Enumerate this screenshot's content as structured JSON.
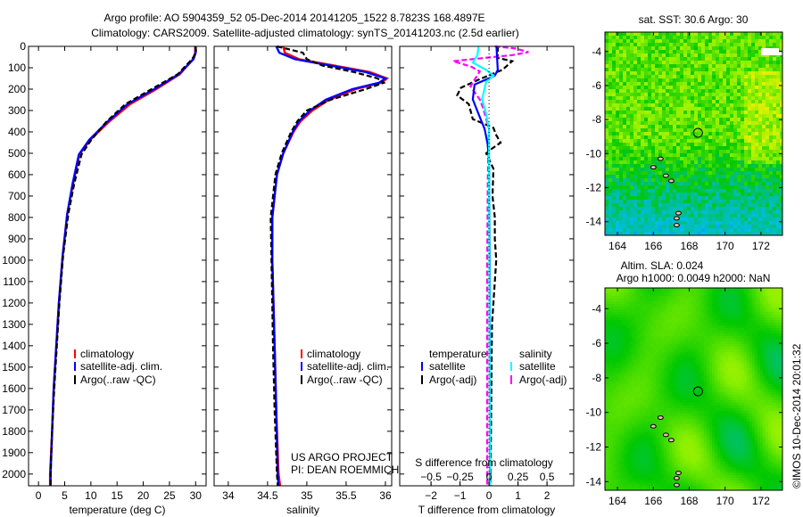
{
  "title": {
    "line1": "Argo profile: AO 5904359_52 05-Dec-2014 20141205_1522 8.7823S 168.4897E",
    "line2": "Climatology: CARS2009. Satellite-adjusted climatology: synTS_20141203.nc (2.5d earlier)"
  },
  "credits": {
    "line1": "US ARGO PROJECT",
    "line2": "PI: DEAN ROEMMICH"
  },
  "watermark": "©IMOS 10-Dec-2014 20:01:32",
  "colors": {
    "climatology": "#ff0000",
    "satellite": "#0000ff",
    "argo": "#000000",
    "sal_satellite": "#00ffff",
    "sal_argo": "#ff00ff"
  },
  "chart_data": [
    {
      "type": "line",
      "id": "temperature",
      "xlabel": "temperature (deg C)",
      "ylabel": "",
      "xlim": [
        -1.9,
        32
      ],
      "ylim": [
        0,
        2055
      ],
      "xticks": [
        0,
        5,
        10,
        15,
        20,
        25,
        30
      ],
      "yticks": [
        0,
        100,
        200,
        300,
        400,
        500,
        600,
        700,
        800,
        900,
        1000,
        1100,
        1200,
        1300,
        1400,
        1500,
        1600,
        1700,
        1800,
        1900,
        2000
      ],
      "legend": [
        "climatology",
        "satellite-adj. clim.",
        "Argo(..raw -QC)"
      ],
      "depth": [
        0,
        30,
        60,
        130,
        200,
        270,
        354,
        437,
        506,
        644,
        783,
        980,
        1200,
        1400,
        1600,
        1800,
        2000,
        2055
      ],
      "series": [
        {
          "name": "climatology",
          "values": [
            29.9,
            29.9,
            29.5,
            27.0,
            22.5,
            17.5,
            13.4,
            9.9,
            7.8,
            6.6,
            5.5,
            4.6,
            3.9,
            3.4,
            2.9,
            2.6,
            2.2,
            2.2
          ]
        },
        {
          "name": "satellite-adj. clim.",
          "values": [
            30.0,
            30.0,
            29.6,
            26.8,
            22.1,
            17.0,
            13.1,
            9.7,
            7.7,
            6.5,
            5.5,
            4.6,
            3.9,
            3.4,
            2.9,
            2.6,
            2.3,
            2.3
          ]
        },
        {
          "name": "Argo(..raw -QC)",
          "values": [
            30.0,
            30.1,
            29.3,
            26.6,
            21.6,
            16.6,
            12.9,
            10.1,
            8.2,
            6.8,
            5.7,
            4.7,
            4.0,
            3.5,
            3.0,
            2.6,
            2.3,
            2.3
          ]
        }
      ]
    },
    {
      "type": "line",
      "id": "salinity",
      "xlabel": "salinity",
      "xlim": [
        33.82,
        36.08
      ],
      "ylim": [
        0,
        2055
      ],
      "xticks": [
        34,
        34.5,
        35,
        35.5,
        36
      ],
      "legend": [
        "climatology",
        "satellite-adj. clim.",
        "Argo(..raw -QC)"
      ],
      "depth": [
        0,
        30,
        60,
        90,
        120,
        150,
        170,
        200,
        250,
        300,
        350,
        400,
        500,
        600,
        800,
        1000,
        1400,
        1700,
        2000,
        2055
      ],
      "series": [
        {
          "name": "climatology",
          "values": [
            34.7,
            34.72,
            34.9,
            35.35,
            35.8,
            36.02,
            35.95,
            35.62,
            35.28,
            35.07,
            34.92,
            34.83,
            34.7,
            34.62,
            34.56,
            34.56,
            34.59,
            34.61,
            34.64,
            34.66
          ]
        },
        {
          "name": "satellite-adj. clim.",
          "values": [
            34.61,
            34.65,
            34.85,
            35.3,
            35.75,
            36.0,
            35.92,
            35.58,
            35.24,
            35.04,
            34.9,
            34.82,
            34.7,
            34.62,
            34.56,
            34.56,
            34.59,
            34.61,
            34.63,
            34.64
          ]
        },
        {
          "name": "Argo(..raw -QC)",
          "values": [
            34.62,
            34.95,
            35.0,
            35.2,
            35.6,
            35.9,
            35.98,
            35.75,
            35.3,
            35.0,
            34.88,
            34.8,
            34.68,
            34.6,
            34.54,
            34.55,
            34.57,
            34.59,
            34.62,
            34.63
          ]
        }
      ]
    },
    {
      "type": "line",
      "id": "differences",
      "xlabel": "T difference from climatology",
      "x2label": "S difference from climatology",
      "xlim": [
        -3.08,
        2.92
      ],
      "x2scale": 0.25,
      "ylim": [
        0,
        2055
      ],
      "xticks": [
        -2,
        -1,
        0,
        1,
        2
      ],
      "x2ticks": [
        -0.5,
        -0.25,
        0,
        0.25,
        0.5
      ],
      "legend_headers": [
        "temperature",
        "salinity"
      ],
      "legend": [
        "satellite",
        "Argo(-adj)",
        "satellite",
        "Argo(-adj)"
      ],
      "series": [
        {
          "name": "temperature satellite",
          "axis": "T",
          "depth": [
            0,
            6,
            110,
            137,
            179,
            248,
            317,
            387,
            456,
            526,
            1000,
            2055
          ],
          "values": [
            0.26,
            0.26,
            0.3,
            0.2,
            -0.5,
            -0.56,
            -0.36,
            -0.15,
            -0.05,
            0.0,
            0.02,
            0.03
          ]
        },
        {
          "name": "temperature Argo(-adj)",
          "axis": "T",
          "depth": [
            0,
            54,
            69,
            110,
            152,
            194,
            229,
            270,
            340,
            381,
            415,
            450,
            478,
            500,
            572,
            700,
            800,
            900,
            1000,
            1300,
            2055
          ],
          "values": [
            0.3,
            0.3,
            0.8,
            0.46,
            -0.3,
            -0.97,
            -1.1,
            -0.7,
            -0.56,
            0.15,
            0.25,
            0.4,
            0.1,
            -0.1,
            0.15,
            0.12,
            0.2,
            0.2,
            0.25,
            0.1,
            0.05
          ]
        },
        {
          "name": "salinity satellite",
          "axis": "S",
          "depth": [
            0,
            41,
            76,
            110,
            137,
            165,
            248,
            317,
            387,
            600,
            2055
          ],
          "values": [
            -0.09,
            -0.1,
            -0.14,
            -0.025,
            0.04,
            -0.025,
            -0.06,
            -0.025,
            0.0,
            0.0,
            0.01
          ]
        },
        {
          "name": "salinity Argo(-adj)",
          "axis": "S",
          "depth": [
            0,
            10,
            27,
            41,
            69,
            96,
            117,
            152,
            187,
            248,
            290,
            387,
            600,
            1000,
            2055
          ],
          "values": [
            0.05,
            0.23,
            0.34,
            0.2,
            -0.31,
            -0.15,
            -0.08,
            -0.12,
            -0.16,
            -0.08,
            -0.05,
            0.0,
            -0.01,
            -0.015,
            -0.015
          ]
        }
      ]
    },
    {
      "type": "heatmap",
      "id": "sst-map",
      "title": "sat. SST: 30.6 Argo: 30",
      "xlim": [
        163.3,
        173.2
      ],
      "ylim": [
        -14.8,
        -2.86
      ],
      "xticks": [
        164,
        166,
        168,
        170,
        172
      ],
      "yticks": [
        -4,
        -6,
        -8,
        -10,
        -12,
        -14
      ],
      "marker": {
        "lon": 168.49,
        "lat": -8.78
      }
    },
    {
      "type": "heatmap",
      "id": "sla-map",
      "title": "Altim. SLA: 0.024",
      "subtitle": "Argo h1000: 0.0049 h2000: NaN",
      "xlim": [
        163.3,
        173.2
      ],
      "ylim": [
        -14.5,
        -2.8
      ],
      "xticks": [
        164,
        166,
        168,
        170,
        172
      ],
      "yticks": [
        -4,
        -6,
        -8,
        -10,
        -12,
        -14
      ],
      "marker": {
        "lon": 168.49,
        "lat": -8.78
      }
    }
  ]
}
